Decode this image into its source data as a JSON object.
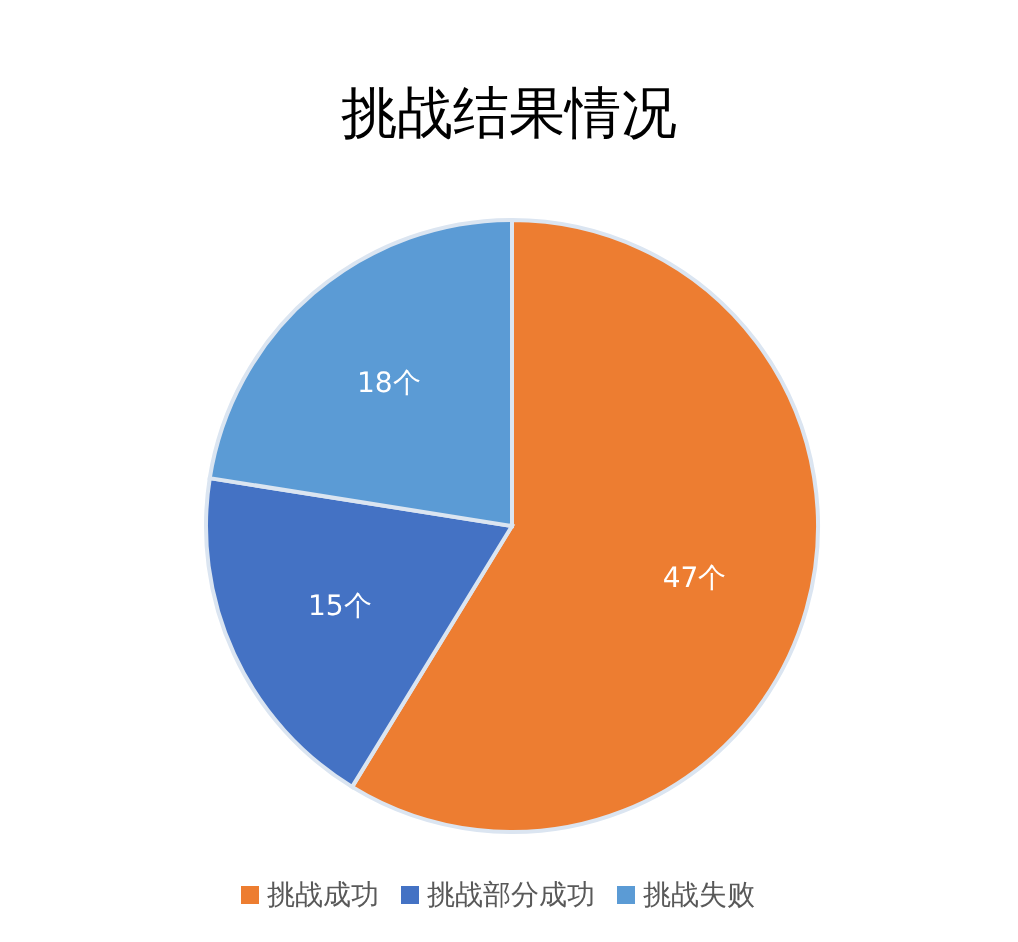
{
  "chart_data": {
    "type": "pie",
    "title": "挑战结果情况",
    "categories": [
      "挑战成功",
      "挑战部分成功",
      "挑战失败"
    ],
    "values": [
      47,
      15,
      18
    ],
    "colors": [
      "#ed7d31",
      "#4472c4",
      "#5b9bd5"
    ],
    "value_labels": [
      "47个",
      "15个",
      "18个"
    ],
    "legend": "bottom"
  }
}
